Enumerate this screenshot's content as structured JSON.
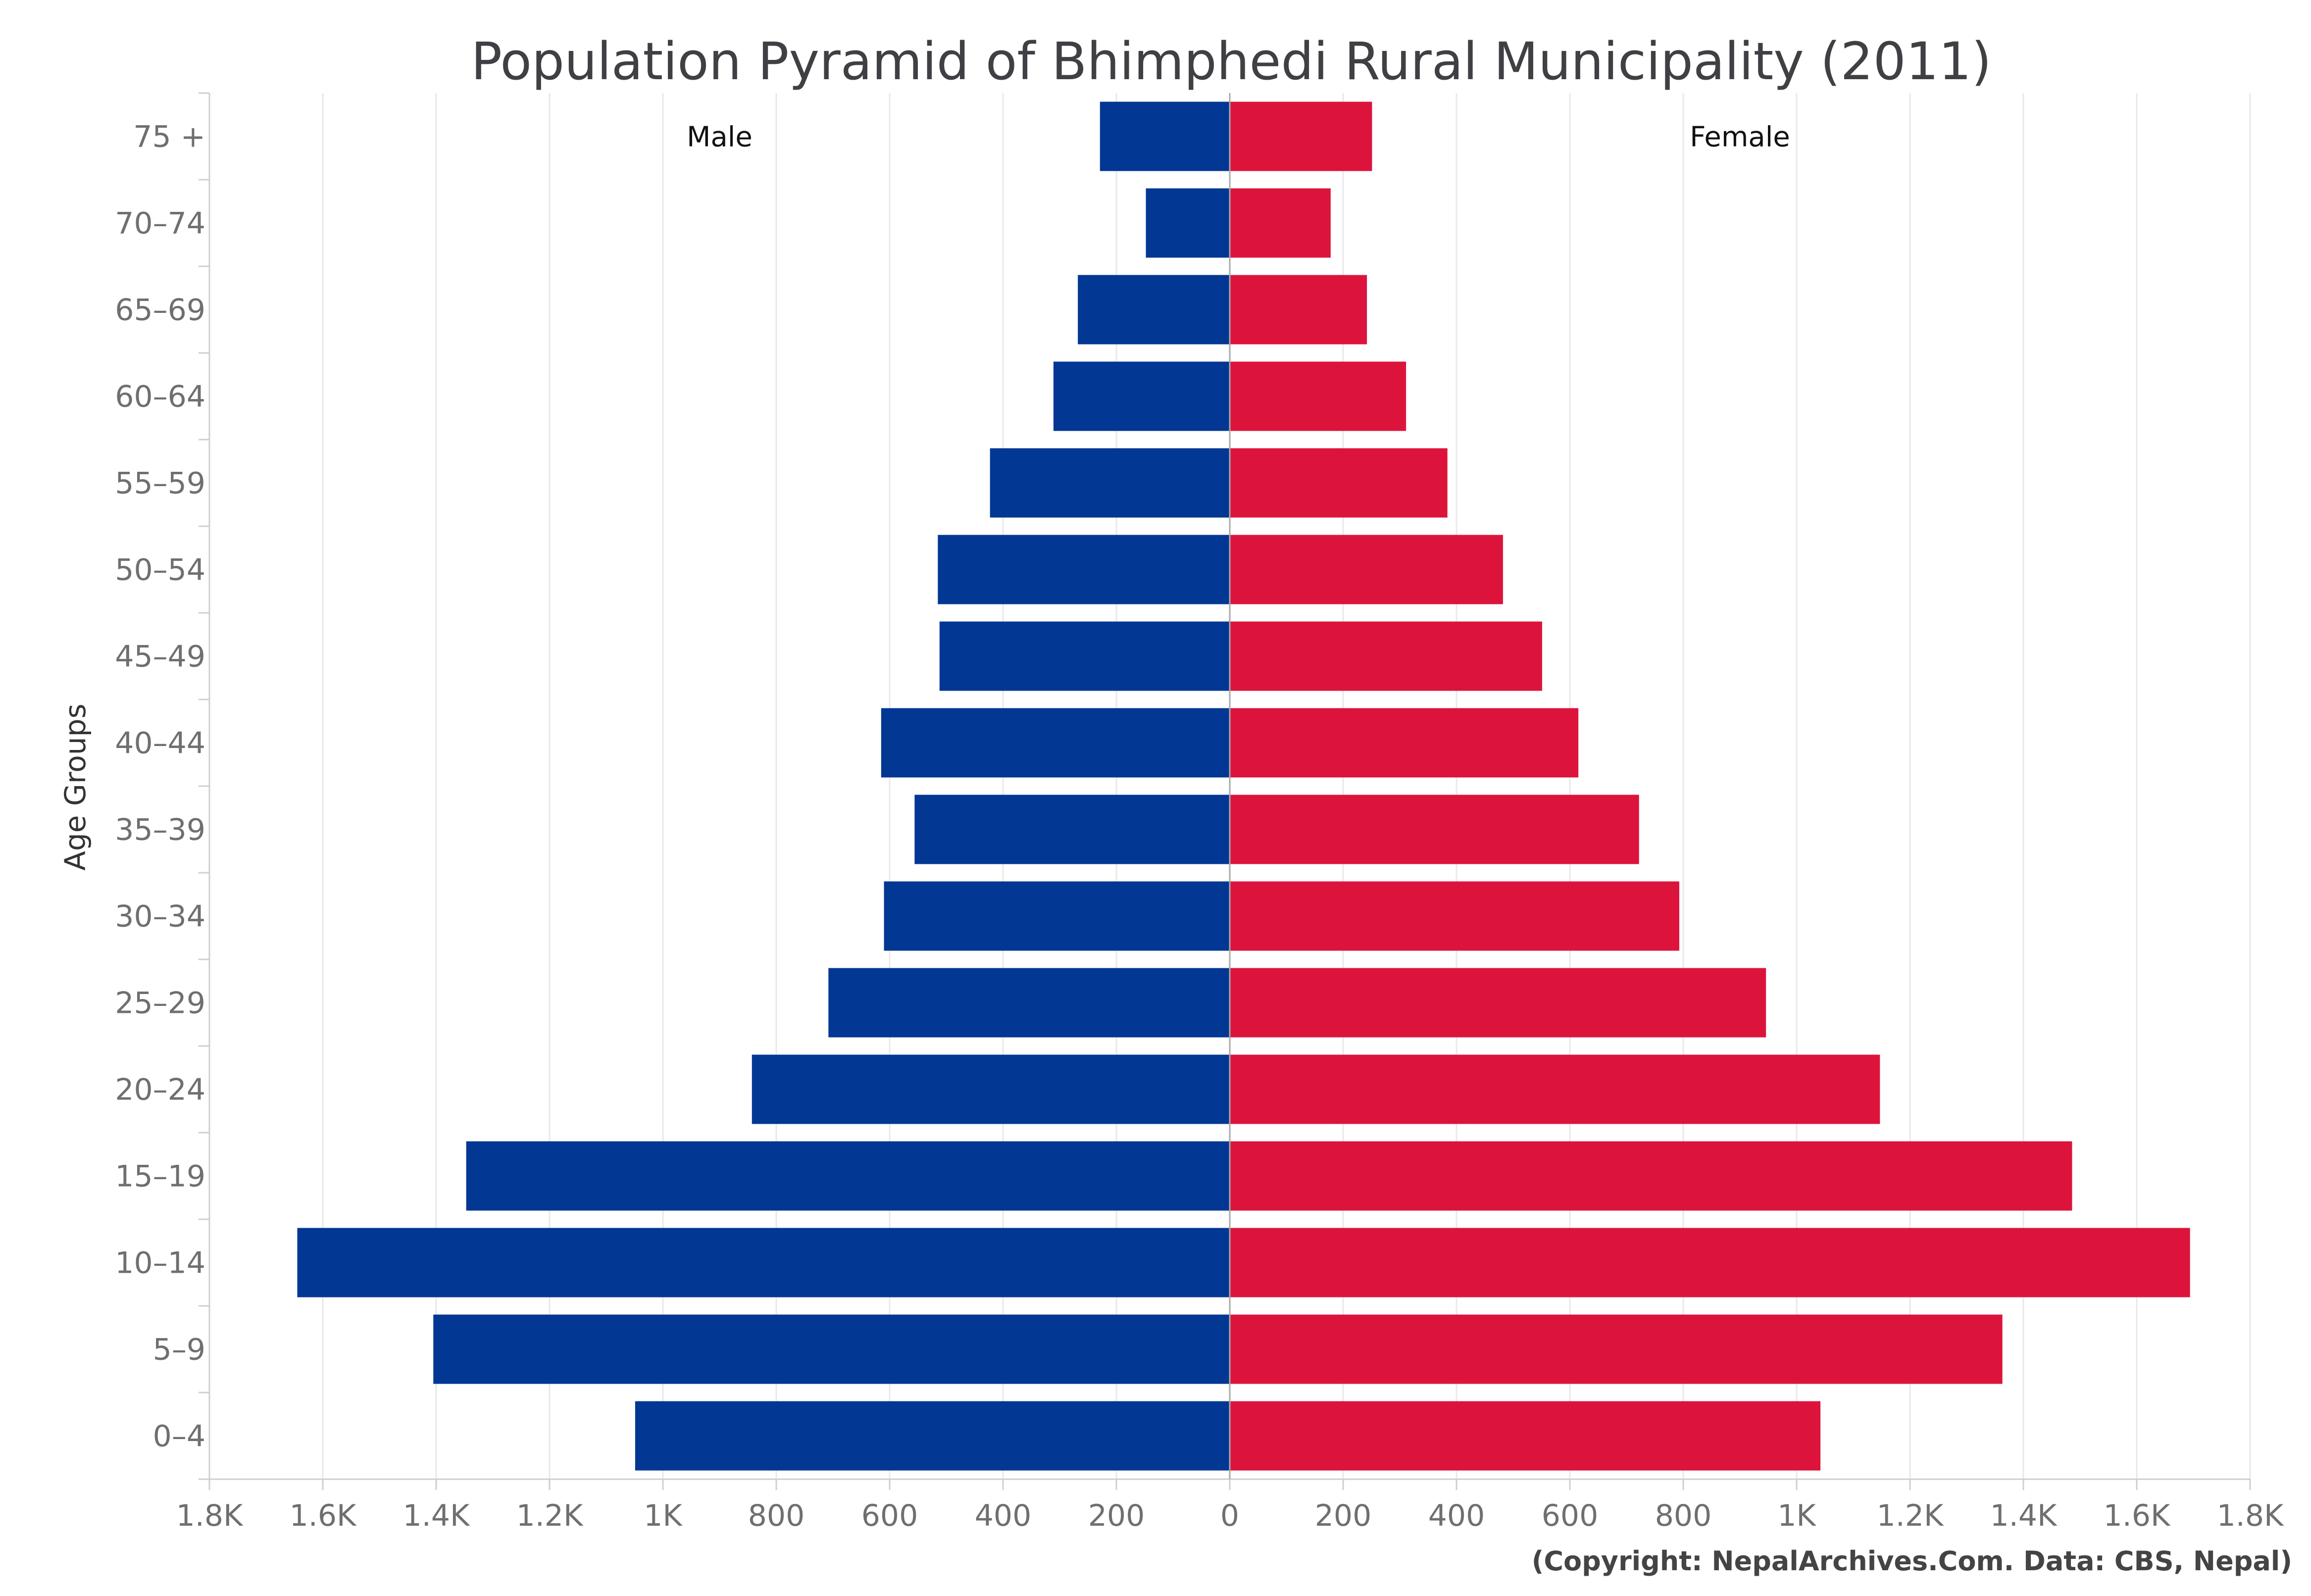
{
  "chart_data": {
    "type": "bar",
    "orientation": "horizontal",
    "title": "Population Pyramid of Bhimphedi Rural Municipality (2011)",
    "ylabel": "Age Groups",
    "xlabel": "",
    "categories": [
      "75 +",
      "70-74",
      "65-69",
      "60-64",
      "55-59",
      "50-54",
      "45-49",
      "40-44",
      "35-39",
      "30-34",
      "25-29",
      "20-24",
      "15-19",
      "10-14",
      "5-9",
      "0-4"
    ],
    "category_labels": [
      "75 +",
      "70–74",
      "65–69",
      "60–64",
      "55–59",
      "50–54",
      "45–49",
      "40–44",
      "35–39",
      "30–34",
      "25–29",
      "20–24",
      "15–19",
      "10–14",
      "5–9",
      "0–4"
    ],
    "series": [
      {
        "name": "Male",
        "side": "left",
        "color": "#023793",
        "values": [
          229,
          148,
          268,
          311,
          423,
          515,
          512,
          615,
          556,
          610,
          708,
          843,
          1347,
          1645,
          1405,
          1049
        ]
      },
      {
        "name": "Female",
        "side": "right",
        "color": "#dc143c",
        "values": [
          251,
          178,
          242,
          311,
          384,
          482,
          551,
          615,
          722,
          793,
          946,
          1147,
          1486,
          1694,
          1363,
          1042
        ]
      }
    ],
    "xlim": [
      -1800,
      1800
    ],
    "xticks": [
      -1800,
      -1600,
      -1400,
      -1200,
      -1000,
      -800,
      -600,
      -400,
      -200,
      0,
      200,
      400,
      600,
      800,
      1000,
      1200,
      1400,
      1600,
      1800
    ],
    "xtick_labels": [
      "1.8K",
      "1.6K",
      "1.4K",
      "1.2K",
      "1K",
      "800",
      "600",
      "400",
      "200",
      "0",
      "200",
      "400",
      "600",
      "800",
      "1K",
      "1.2K",
      "1.4K",
      "1.6K",
      "1.8K"
    ],
    "grid": true,
    "legend": "none",
    "footer": "(Copyright: NepalArchives.Com. Data: CBS, Nepal)"
  }
}
